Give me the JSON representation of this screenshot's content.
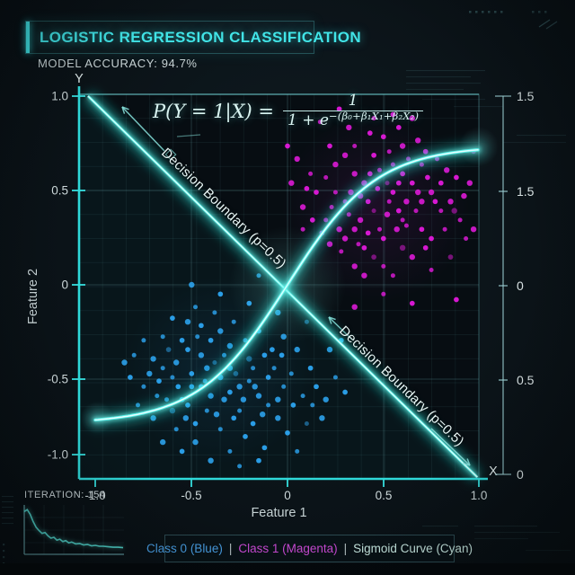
{
  "header": {
    "title": "LOGISTIC REGRESSION CLASSIFICATION",
    "accuracy": "MODEL ACCURACY: 94.7%"
  },
  "formula": {
    "lhs": "P(Y = 1|X) =",
    "numerator": "1",
    "denominator_base": "1 + e",
    "exponent": "−(β₀+β₁X₁+β₂X₂)"
  },
  "annotations": {
    "decision_boundary_label": "Decision Boundary (p=0.5)"
  },
  "iteration_panel": {
    "label": "ITERATION: 154"
  },
  "legend": {
    "class0": "Class 0 (Blue)",
    "separator": "|",
    "class1": "Class 1 (Magenta)",
    "sigmoid": "Sigmoid Curve (Cyan)"
  },
  "colors": {
    "accent_cyan": "#41e4e7",
    "curve_cyan": "#49f4ea",
    "class0_blue": "#2da6f2",
    "class1_magenta": "#e31add",
    "text_light": "#ccd7d9"
  },
  "chart_data": {
    "type": "scatter",
    "title": "LOGISTIC REGRESSION CLASSIFICATION",
    "x_axis": {
      "label": "Feature 1",
      "end_label": "X",
      "range": [
        -1,
        1
      ],
      "tick_labels": [
        "-1.0",
        "-0.5",
        "0",
        "0.5",
        "1.0"
      ]
    },
    "y_axis": {
      "label": "Feature 2",
      "end_label": "Y",
      "range": [
        -1,
        1
      ],
      "tick_labels": [
        "1.0",
        "0.5",
        "0",
        "-0.5",
        "-1.0"
      ]
    },
    "right_axis": {
      "tick_labels": [
        "1.5",
        "1.5",
        "0",
        "0.5",
        "0"
      ]
    },
    "grid": true,
    "series": [
      {
        "name": "Class 0",
        "color": "#2da6f2",
        "points": [
          [
            -0.38,
            -0.42
          ],
          [
            -0.52,
            -0.35
          ],
          [
            -0.25,
            -0.55
          ],
          [
            -0.6,
            -0.5
          ],
          [
            -0.45,
            -0.22
          ],
          [
            -0.3,
            -0.33
          ],
          [
            -0.18,
            -0.45
          ],
          [
            -0.55,
            -0.62
          ],
          [
            -0.7,
            -0.4
          ],
          [
            -0.42,
            -0.68
          ],
          [
            -0.28,
            -0.72
          ],
          [
            -0.15,
            -0.6
          ],
          [
            -0.65,
            -0.28
          ],
          [
            -0.5,
            -0.48
          ],
          [
            -0.35,
            -0.5
          ],
          [
            -0.22,
            -0.3
          ],
          [
            -0.48,
            -0.75
          ],
          [
            -0.6,
            -0.68
          ],
          [
            -0.75,
            -0.55
          ],
          [
            -0.4,
            -0.3
          ],
          [
            -0.33,
            -0.62
          ],
          [
            -0.2,
            -0.52
          ],
          [
            -0.12,
            -0.38
          ],
          [
            -0.58,
            -0.42
          ],
          [
            -0.68,
            -0.6
          ],
          [
            -0.45,
            -0.55
          ],
          [
            -0.3,
            -0.45
          ],
          [
            -0.25,
            -0.68
          ],
          [
            -0.1,
            -0.5
          ],
          [
            -0.05,
            -0.62
          ],
          [
            0.02,
            -0.48
          ],
          [
            -0.08,
            -0.35
          ],
          [
            -0.52,
            -0.2
          ],
          [
            -0.38,
            -0.15
          ],
          [
            -0.62,
            -0.35
          ],
          [
            -0.72,
            -0.48
          ],
          [
            -0.8,
            -0.38
          ],
          [
            -0.55,
            -0.3
          ],
          [
            -0.42,
            -0.45
          ],
          [
            -0.35,
            -0.78
          ],
          [
            -0.22,
            -0.82
          ],
          [
            -0.48,
            -0.85
          ],
          [
            -0.3,
            -0.9
          ],
          [
            -0.18,
            -0.75
          ],
          [
            -0.05,
            -0.72
          ],
          [
            0.08,
            -0.6
          ],
          [
            0.12,
            -0.45
          ],
          [
            0.05,
            -0.35
          ],
          [
            -0.02,
            -0.55
          ],
          [
            0.15,
            -0.55
          ],
          [
            0.2,
            -0.62
          ],
          [
            0.1,
            -0.75
          ],
          [
            -0.12,
            -0.88
          ],
          [
            -0.4,
            -0.95
          ],
          [
            -0.28,
            -0.2
          ],
          [
            -0.15,
            -0.25
          ],
          [
            -0.02,
            -0.28
          ],
          [
            -0.48,
            -0.12
          ],
          [
            -0.6,
            -0.18
          ],
          [
            -0.35,
            -0.25
          ],
          [
            -0.78,
            -0.65
          ],
          [
            -0.82,
            -0.5
          ],
          [
            -0.7,
            -0.72
          ],
          [
            -0.58,
            -0.78
          ],
          [
            -0.52,
            -0.65
          ],
          [
            -0.45,
            -0.38
          ],
          [
            -0.65,
            -0.45
          ],
          [
            -0.3,
            -0.58
          ],
          [
            -0.2,
            -0.4
          ],
          [
            -0.1,
            -0.65
          ],
          [
            0,
            -0.8
          ],
          [
            0.18,
            -0.72
          ],
          [
            0.25,
            -0.5
          ],
          [
            0.3,
            -0.58
          ],
          [
            0.22,
            -0.35
          ],
          [
            0.05,
            -0.9
          ],
          [
            -0.55,
            -0.9
          ],
          [
            -0.65,
            -0.85
          ],
          [
            -0.25,
            -0.98
          ],
          [
            -0.15,
            -0.95
          ],
          [
            -0.85,
            -0.42
          ],
          [
            -0.75,
            -0.3
          ],
          [
            -0.5,
            -0.55
          ],
          [
            -0.4,
            -0.6
          ],
          [
            -0.33,
            -0.38
          ],
          [
            -0.27,
            -0.48
          ],
          [
            -0.17,
            -0.55
          ],
          [
            -0.07,
            -0.45
          ],
          [
            0.03,
            -0.65
          ],
          [
            -0.23,
            -0.62
          ],
          [
            -0.43,
            -0.52
          ],
          [
            -0.57,
            -0.55
          ],
          [
            -0.37,
            -0.7
          ],
          [
            -0.47,
            -0.28
          ],
          [
            -0.67,
            -0.52
          ],
          [
            -0.13,
            -0.7
          ],
          [
            0.13,
            -0.65
          ],
          [
            -0.03,
            -0.38
          ],
          [
            -0.53,
            -0.72
          ],
          [
            -0.63,
            -0.62
          ],
          [
            -0.2,
            -0.1
          ],
          [
            -0.05,
            -0.15
          ],
          [
            0.1,
            -0.2
          ],
          [
            -0.35,
            -0.05
          ],
          [
            -0.5,
            0
          ],
          [
            -0.15,
            0.05
          ],
          [
            0.28,
            -0.3
          ]
        ]
      },
      {
        "name": "Class 1",
        "color": "#e31add",
        "points": [
          [
            0.45,
            0.4
          ],
          [
            0.55,
            0.5
          ],
          [
            0.35,
            0.3
          ],
          [
            0.6,
            0.35
          ],
          [
            0.5,
            0.25
          ],
          [
            0.4,
            0.55
          ],
          [
            0.3,
            0.45
          ],
          [
            0.65,
            0.55
          ],
          [
            0.7,
            0.45
          ],
          [
            0.55,
            0.65
          ],
          [
            0.45,
            0.7
          ],
          [
            0.35,
            0.6
          ],
          [
            0.25,
            0.5
          ],
          [
            0.6,
            0.6
          ],
          [
            0.75,
            0.5
          ],
          [
            0.8,
            0.4
          ],
          [
            0.7,
            0.3
          ],
          [
            0.6,
            0.2
          ],
          [
            0.5,
            0.1
          ],
          [
            0.4,
            0.2
          ],
          [
            0.3,
            0.25
          ],
          [
            0.2,
            0.35
          ],
          [
            0.15,
            0.5
          ],
          [
            0.25,
            0.65
          ],
          [
            0.35,
            0.75
          ],
          [
            0.5,
            0.8
          ],
          [
            0.6,
            0.75
          ],
          [
            0.7,
            0.65
          ],
          [
            0.8,
            0.55
          ],
          [
            0.85,
            0.45
          ],
          [
            0.9,
            0.35
          ],
          [
            0.75,
            0.25
          ],
          [
            0.65,
            0.15
          ],
          [
            0.55,
            0.05
          ],
          [
            0.45,
            0.15
          ],
          [
            0.35,
            0.1
          ],
          [
            0.28,
            0.18
          ],
          [
            0.18,
            0.28
          ],
          [
            0.08,
            0.42
          ],
          [
            0.12,
            0.6
          ],
          [
            0.22,
            0.75
          ],
          [
            0.32,
            0.85
          ],
          [
            0.45,
            0.9
          ],
          [
            0.58,
            0.85
          ],
          [
            0.68,
            0.78
          ],
          [
            0.78,
            0.68
          ],
          [
            0.88,
            0.58
          ],
          [
            0.92,
            0.48
          ],
          [
            0.82,
            0.3
          ],
          [
            0.72,
            0.2
          ],
          [
            0.62,
            0.45
          ],
          [
            0.52,
            0.55
          ],
          [
            0.42,
            0.45
          ],
          [
            0.38,
            0.35
          ],
          [
            0.48,
            0.3
          ],
          [
            0.58,
            0.4
          ],
          [
            0.68,
            0.5
          ],
          [
            0.53,
            0.45
          ],
          [
            0.43,
            0.6
          ],
          [
            0.33,
            0.5
          ],
          [
            0.23,
            0.42
          ],
          [
            0.13,
            0.35
          ],
          [
            0.27,
            0.3
          ],
          [
            0.37,
            0.22
          ],
          [
            0.47,
            0.52
          ],
          [
            0.57,
            0.3
          ],
          [
            0.67,
            0.4
          ],
          [
            0.77,
            0.45
          ],
          [
            0.87,
            0.4
          ],
          [
            0.63,
            0.68
          ],
          [
            0.73,
            0.58
          ],
          [
            0.83,
            0.62
          ],
          [
            0.53,
            0.72
          ],
          [
            0.43,
            0.82
          ],
          [
            0.3,
            0.7
          ],
          [
            0.2,
            0.58
          ],
          [
            0.1,
            0.52
          ],
          [
            0.05,
            0.68
          ],
          [
            0.17,
            0.88
          ],
          [
            0.27,
            0.95
          ],
          [
            0.4,
            0.05
          ],
          [
            0.5,
            -0.05
          ],
          [
            0.65,
            -0.1
          ],
          [
            0.35,
            -0.12
          ],
          [
            0.75,
            0.08
          ],
          [
            0.85,
            0.15
          ],
          [
            0.95,
            0.55
          ],
          [
            0.93,
            0.25
          ],
          [
            0.55,
            0.92
          ],
          [
            0.65,
            0.9
          ],
          [
            0.48,
            0.62
          ],
          [
            0.58,
            0.55
          ],
          [
            0.38,
            0.48
          ],
          [
            0.62,
            0.32
          ],
          [
            0.42,
            0.28
          ],
          [
            0.22,
            0.22
          ],
          [
            0.08,
            0.3
          ],
          [
            0.72,
            0.72
          ],
          [
            0.52,
            0.38
          ],
          [
            0.32,
            0.38
          ],
          [
            0.88,
            -0.08
          ],
          [
            0.97,
            0.3
          ],
          [
            0.97,
            0.72
          ],
          [
            0,
            0.75
          ],
          [
            0.02,
            0.55
          ]
        ]
      }
    ],
    "sigmoid_curve": {
      "name": "Sigmoid Curve",
      "color": "#49f4ea",
      "function": "y = 1.5/(1+e^(-4.3x)) - 0.75",
      "amplitude": 0.75,
      "steepness": 4.3
    },
    "decision_boundary": {
      "label": "Decision Boundary (p=0.5)",
      "from": [
        -1.04,
        1.02
      ],
      "to": [
        0.99,
        -1.04
      ],
      "color": "#49f4ea"
    },
    "loss_curve": {
      "points": [
        [
          0,
          0.12
        ],
        [
          0.03,
          0.08
        ],
        [
          0.06,
          0.18
        ],
        [
          0.09,
          0.33
        ],
        [
          0.12,
          0.45
        ],
        [
          0.15,
          0.52
        ],
        [
          0.18,
          0.58
        ],
        [
          0.21,
          0.56
        ],
        [
          0.24,
          0.63
        ],
        [
          0.27,
          0.68
        ],
        [
          0.3,
          0.66
        ],
        [
          0.33,
          0.72
        ],
        [
          0.36,
          0.7
        ],
        [
          0.39,
          0.75
        ],
        [
          0.42,
          0.73
        ],
        [
          0.45,
          0.78
        ],
        [
          0.48,
          0.76
        ],
        [
          0.52,
          0.8
        ],
        [
          0.56,
          0.79
        ],
        [
          0.6,
          0.82
        ],
        [
          0.64,
          0.81
        ],
        [
          0.68,
          0.84
        ],
        [
          0.72,
          0.83
        ],
        [
          0.76,
          0.85
        ],
        [
          0.8,
          0.85
        ],
        [
          0.85,
          0.86
        ],
        [
          0.9,
          0.87
        ],
        [
          0.95,
          0.87
        ],
        [
          1,
          0.88
        ]
      ]
    }
  }
}
